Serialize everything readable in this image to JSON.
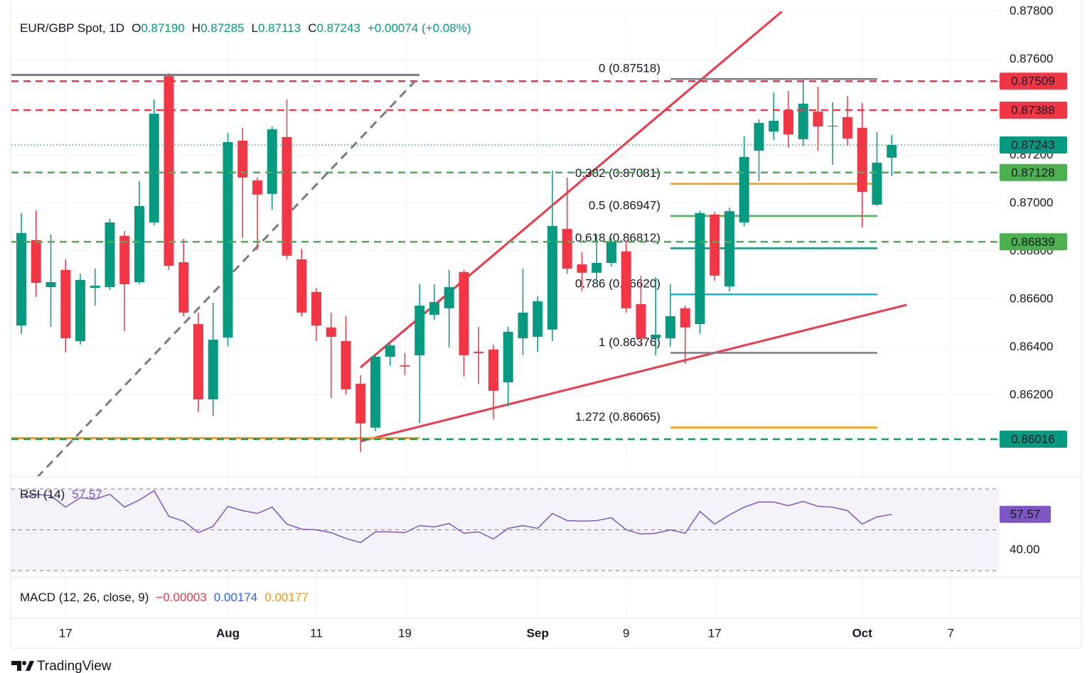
{
  "chart_data": {
    "type": "candlestick",
    "title": "EUR/GBP Spot, 1D",
    "ohlc_legend": [
      {
        "key": "O",
        "value": "0.87190"
      },
      {
        "key": "H",
        "value": "0.87285"
      },
      {
        "key": "L",
        "value": "0.87113"
      },
      {
        "key": "C",
        "value": "0.87243"
      }
    ],
    "change": "+0.00074 (+0.08%)",
    "categories": [
      null,
      null,
      null,
      "17",
      null,
      null,
      null,
      null,
      null,
      null,
      null,
      null,
      null,
      null,
      "Aug",
      null,
      null,
      null,
      null,
      null,
      "11",
      null,
      null,
      null,
      null,
      null,
      "19",
      null,
      null,
      null,
      null,
      null,
      null,
      null,
      null,
      "Sep",
      null,
      null,
      null,
      null,
      null,
      "9",
      null,
      null,
      null,
      null,
      null,
      "17",
      null,
      null,
      null,
      null,
      null,
      null,
      null,
      null,
      null,
      "Oct",
      null,
      null,
      null,
      null,
      null,
      "7"
    ],
    "open": [
      0.8649,
      0.86846,
      0.8665,
      0.86722,
      0.86425,
      0.86647,
      0.8665,
      0.86864,
      0.86671,
      0.8692,
      0.8753,
      0.86754,
      0.86496,
      0.86182,
      0.8644,
      0.87261,
      0.87095,
      0.87039,
      0.87276,
      0.86766,
      0.8663,
      0.86482,
      0.86425,
      0.86247,
      0.86064,
      0.8636,
      0.86324,
      0.86366,
      0.86535,
      0.86562,
      0.86713,
      0.86381,
      0.8639,
      0.86253,
      0.86437,
      0.86443,
      0.86473,
      0.86893,
      0.86745,
      0.8671,
      0.86751,
      0.86799,
      0.86579,
      0.86437,
      0.86437,
      0.86562,
      0.86496,
      0.86953,
      0.86653,
      0.8692,
      0.87219,
      0.87299,
      0.87388,
      0.87267,
      0.87382,
      0.8732,
      0.87359,
      0.87314,
      0.86994,
      0.8719,
      null,
      null,
      null,
      null
    ],
    "high": [
      0.86959,
      0.8697,
      0.8687,
      0.86766,
      0.86707,
      0.86727,
      0.86935,
      0.86884,
      0.87092,
      0.87433,
      0.87542,
      0.86852,
      0.86544,
      0.86585,
      0.87293,
      0.87314,
      0.87107,
      0.8732,
      0.87433,
      0.8681,
      0.86647,
      0.86544,
      0.86529,
      0.86283,
      0.86366,
      0.86419,
      0.86375,
      0.86662,
      0.86662,
      0.86722,
      0.86722,
      0.86484,
      0.8641,
      0.86484,
      0.86727,
      0.86612,
      0.87136,
      0.87107,
      0.86796,
      0.8687,
      0.86855,
      0.8684,
      0.86698,
      0.86692,
      0.86662,
      0.86573,
      0.8697,
      0.86964,
      0.86982,
      0.87279,
      0.8735,
      0.87462,
      0.87468,
      0.87513,
      0.87486,
      0.87421,
      0.87447,
      0.87418,
      0.87296,
      0.87285,
      null,
      null,
      null,
      null
    ],
    "low": [
      0.86455,
      0.86609,
      0.86484,
      0.86378,
      0.8641,
      0.86573,
      0.86639,
      0.86467,
      0.86662,
      0.86908,
      0.86722,
      0.86529,
      0.86129,
      0.86114,
      0.86404,
      0.86855,
      0.86804,
      0.86973,
      0.86766,
      0.86529,
      0.86425,
      0.86188,
      0.86203,
      0.85963,
      0.86049,
      0.86322,
      0.86283,
      0.86084,
      0.86514,
      0.86399,
      0.86277,
      0.86247,
      0.86099,
      0.86153,
      0.86366,
      0.86381,
      0.86425,
      0.86707,
      0.86633,
      0.86662,
      0.86736,
      0.86544,
      0.8641,
      0.86366,
      0.86402,
      0.8633,
      0.86455,
      0.86677,
      0.86633,
      0.86905,
      0.87092,
      0.87264,
      0.87231,
      0.8724,
      0.87219,
      0.8716,
      0.8724,
      0.86899,
      0.86988,
      0.87113,
      null,
      null,
      null,
      null
    ],
    "close": [
      0.86876,
      0.86668,
      0.86671,
      0.86437,
      0.8668,
      0.86656,
      0.8692,
      0.86662,
      0.86988,
      0.87373,
      0.86739,
      0.86544,
      0.86182,
      0.86431,
      0.87255,
      0.87107,
      0.87036,
      0.87308,
      0.86781,
      0.86544,
      0.8649,
      0.86443,
      0.86224,
      0.86082,
      0.8636,
      0.86407,
      0.86319,
      0.86573,
      0.86588,
      0.8665,
      0.86366,
      0.86375,
      0.86218,
      0.86464,
      0.86544,
      0.86591,
      0.86905,
      0.86727,
      0.8671,
      0.86751,
      0.8684,
      0.86562,
      0.86437,
      0.86452,
      0.86529,
      0.86482,
      0.86959,
      0.86698,
      0.86967,
      0.87193,
      0.87335,
      0.87344,
      0.87287,
      0.87415,
      0.8732,
      0.87323,
      0.8727,
      0.87047,
      0.87169,
      0.87243,
      null,
      null,
      null,
      null
    ],
    "up_color": "#089981",
    "down_color": "#f23645",
    "ylim": [
      0.85862,
      0.878
    ],
    "yticks": [
      {
        "value": 0.862,
        "label": "0.86200"
      },
      {
        "value": 0.864,
        "label": "0.86400"
      },
      {
        "value": 0.866,
        "label": "0.86600"
      },
      {
        "value": 0.868,
        "label": "0.86800"
      },
      {
        "value": 0.87,
        "label": "0.87000"
      },
      {
        "value": 0.872,
        "label": "0.87200"
      },
      {
        "value": 0.876,
        "label": "0.87600"
      },
      {
        "value": 0.878,
        "label": "0.87800"
      }
    ],
    "grid": true,
    "price_lines": [
      {
        "value": 0.87509,
        "color": "#f23645",
        "style": "dashed"
      },
      {
        "value": 0.87388,
        "color": "#f23645",
        "style": "dashed"
      },
      {
        "value": 0.87243,
        "color": "#089981",
        "style": "dotted"
      },
      {
        "value": 0.87128,
        "color": "#4caf50",
        "style": "dashed"
      },
      {
        "value": 0.86839,
        "color": "#4caf50",
        "style": "dashed"
      },
      {
        "value": 0.86016,
        "color": "#089981",
        "style": "dashed"
      }
    ],
    "range_lines": [
      {
        "value": 0.87535,
        "color": "#787b86"
      },
      {
        "value": 0.8602,
        "color": "#ff9800"
      }
    ],
    "fibonacci": [
      {
        "label": "0 (0.87518)",
        "value": 0.87518,
        "color": "#787b86"
      },
      {
        "label": "0.382 (0.87081)",
        "value": 0.87081,
        "color": "#ff9800"
      },
      {
        "label": "0.5 (0.86947)",
        "value": 0.86947,
        "color": "#4caf50"
      },
      {
        "label": "0.618 (0.86812)",
        "value": 0.86812,
        "color": "#089981"
      },
      {
        "label": "0.786 (0.86620)",
        "value": 0.8662,
        "color": "#00bcd4"
      },
      {
        "label": "1 (0.86376)",
        "value": 0.86376,
        "color": "#787b86"
      },
      {
        "label": "1.272 (0.86065)",
        "value": 0.86065,
        "color": "#ff9800"
      }
    ],
    "rsi": {
      "title": "RSI (14)",
      "color": "#7e57c2",
      "values": [
        65.7,
        67.4,
        66.7,
        61.1,
        65.7,
        65.0,
        67.4,
        61.1,
        64.6,
        69.1,
        56.6,
        54.2,
        48.6,
        51.7,
        61.5,
        59.4,
        58.0,
        61.1,
        52.8,
        50.3,
        50.0,
        48.6,
        45.8,
        43.7,
        49.0,
        49.0,
        48.6,
        52.1,
        51.4,
        53.1,
        48.3,
        49.0,
        45.5,
        50.7,
        52.1,
        50.7,
        58.0,
        54.5,
        54.2,
        54.5,
        55.9,
        50.0,
        47.9,
        48.3,
        50.0,
        48.3,
        59.0,
        52.8,
        57.3,
        61.1,
        63.6,
        63.6,
        61.8,
        63.9,
        61.5,
        61.1,
        59.4,
        52.8,
        56.3,
        57.57,
        null,
        null,
        null,
        null
      ],
      "ylim": [
        30,
        70
      ],
      "bands": [
        70,
        50,
        30
      ],
      "yticks": [
        {
          "value": 40,
          "label": "40.00"
        }
      ]
    },
    "macd": {
      "title": "MACD (12, 26, close, 9)",
      "readings": [
        {
          "value": "−0.00003",
          "color": "#f23645"
        },
        {
          "value": "0.00174",
          "color": "#2962ff"
        },
        {
          "value": "0.00177",
          "color": "#ff9800"
        }
      ]
    }
  },
  "footer": {
    "brand": "TradingView"
  }
}
